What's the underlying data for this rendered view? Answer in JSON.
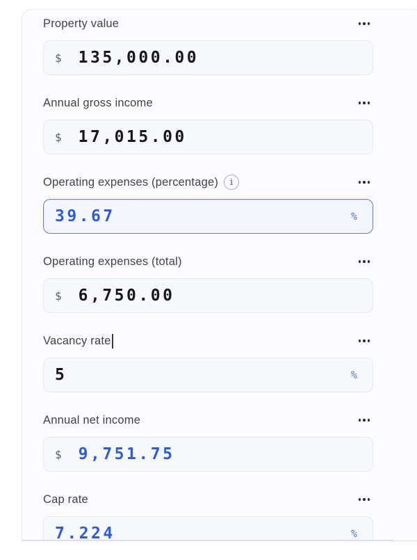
{
  "colors": {
    "accent_blue_value": "#2e5cd9",
    "suffix_blue": "#5d76e5",
    "focus_border": "#5e78e4",
    "input_background": "#f7f8fb",
    "label_text": "#414149",
    "dark_value": "#17171c"
  },
  "icons": {
    "menu": "ellipsis-horizontal",
    "info": "circle-i"
  },
  "card": {
    "fields": [
      {
        "label": "Property value",
        "prefix": "$",
        "value": "135,000.00",
        "suffix": "",
        "value_blue": false,
        "focused": false,
        "has_info": false,
        "label_caret": false
      },
      {
        "label": "Annual gross income",
        "prefix": "$",
        "value": "17,015.00",
        "suffix": "",
        "value_blue": false,
        "focused": false,
        "has_info": false,
        "label_caret": false
      },
      {
        "label": "Operating expenses (percentage)",
        "prefix": "",
        "value": "39.67",
        "suffix": "%",
        "value_blue": true,
        "focused": true,
        "has_info": true,
        "label_caret": false
      },
      {
        "label": "Operating expenses (total)",
        "prefix": "$",
        "value": "6,750.00",
        "suffix": "",
        "value_blue": false,
        "focused": false,
        "has_info": false,
        "label_caret": false
      },
      {
        "label": "Vacancy rate",
        "prefix": "",
        "value": "5",
        "suffix": "%",
        "value_blue": false,
        "focused": false,
        "has_info": false,
        "label_caret": true
      },
      {
        "label": "Annual net income",
        "prefix": "$",
        "value": "9,751.75",
        "suffix": "",
        "value_blue": true,
        "focused": false,
        "has_info": false,
        "label_caret": false
      },
      {
        "label": "Cap rate",
        "prefix": "",
        "value": "7.224",
        "suffix": "%",
        "value_blue": true,
        "focused": false,
        "has_info": false,
        "label_caret": false
      }
    ],
    "info_glyph": "i"
  }
}
